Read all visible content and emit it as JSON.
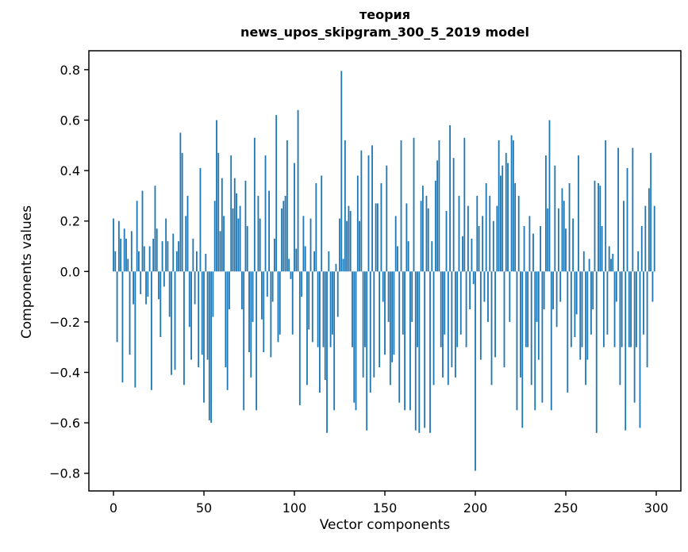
{
  "figure": {
    "title_line1": "теория",
    "title_line2": "news_upos_skipgram_300_5_2019 model"
  },
  "chart_data": {
    "type": "bar",
    "title": "теория",
    "subtitle": "news_upos_skipgram_300_5_2019 model",
    "xlabel": "Vector components",
    "ylabel": "Components values",
    "bar_color": "#1f77b4",
    "axis_color": "#000000",
    "grid": false,
    "legend": null,
    "xlim": [
      -13.6,
      313.6
    ],
    "ylim": [
      -0.87,
      0.875
    ],
    "x_ticks": [
      0,
      50,
      100,
      150,
      200,
      250,
      300
    ],
    "x_tick_labels": [
      "0",
      "50",
      "100",
      "150",
      "200",
      "250",
      "300"
    ],
    "y_ticks": [
      0.8,
      0.6,
      0.4,
      0.2,
      0.0,
      -0.2,
      -0.4,
      -0.6,
      -0.8
    ],
    "y_tick_labels": [
      "0.8",
      "0.6",
      "0.4",
      "0.2",
      "0.0",
      "−0.2",
      "−0.4",
      "−0.6",
      "−0.8"
    ],
    "x": "component index 0..299",
    "values": [
      0.21,
      0.08,
      -0.28,
      0.2,
      0.13,
      -0.44,
      0.17,
      0.13,
      0.05,
      -0.33,
      0.16,
      -0.13,
      -0.46,
      0.28,
      0.08,
      -0.09,
      0.32,
      0.1,
      -0.13,
      -0.1,
      0.1,
      -0.47,
      0.13,
      0.34,
      0.17,
      -0.11,
      -0.26,
      0.12,
      -0.06,
      0.21,
      0.12,
      -0.18,
      -0.41,
      0.15,
      -0.39,
      0.08,
      0.12,
      0.55,
      0.47,
      -0.45,
      0.22,
      0.3,
      -0.22,
      -0.35,
      0.13,
      -0.13,
      0.08,
      -0.38,
      0.41,
      -0.33,
      -0.52,
      0.07,
      -0.35,
      -0.59,
      -0.6,
      -0.18,
      0.28,
      0.6,
      0.47,
      0.16,
      0.37,
      0.22,
      -0.38,
      -0.47,
      -0.15,
      0.46,
      0.25,
      0.37,
      0.31,
      0.21,
      0.26,
      -0.15,
      -0.55,
      0.36,
      0.18,
      -0.32,
      -0.42,
      -0.2,
      0.53,
      -0.55,
      0.3,
      0.21,
      -0.19,
      -0.32,
      0.46,
      -0.1,
      0.32,
      -0.34,
      -0.12,
      0.13,
      0.62,
      -0.28,
      -0.25,
      0.25,
      0.28,
      0.3,
      0.52,
      0.05,
      -0.03,
      -0.25,
      0.43,
      0.09,
      0.64,
      -0.53,
      -0.1,
      0.22,
      0.1,
      -0.45,
      -0.23,
      0.21,
      -0.28,
      0.08,
      0.35,
      -0.3,
      -0.48,
      0.38,
      -0.3,
      -0.43,
      -0.64,
      0.08,
      -0.3,
      -0.25,
      -0.55,
      0.03,
      -0.18,
      0.21,
      0.795,
      0.05,
      0.52,
      0.2,
      0.26,
      0.24,
      -0.3,
      -0.52,
      -0.55,
      0.38,
      0.2,
      0.48,
      -0.42,
      -0.3,
      -0.63,
      0.46,
      -0.48,
      0.5,
      -0.42,
      0.27,
      0.27,
      -0.38,
      0.35,
      -0.12,
      -0.33,
      0.42,
      -0.2,
      -0.45,
      -0.36,
      -0.33,
      0.22,
      0.1,
      -0.52,
      0.52,
      -0.25,
      -0.55,
      0.27,
      0.12,
      -0.55,
      -0.2,
      0.53,
      -0.63,
      -0.3,
      -0.64,
      0.28,
      0.34,
      -0.62,
      0.3,
      0.25,
      -0.64,
      0.12,
      -0.45,
      0.36,
      0.44,
      0.52,
      -0.3,
      -0.42,
      -0.25,
      0.24,
      -0.45,
      0.58,
      -0.38,
      0.45,
      -0.42,
      -0.3,
      0.3,
      -0.25,
      0.14,
      0.53,
      -0.3,
      0.26,
      -0.15,
      0.13,
      -0.05,
      -0.79,
      0.3,
      0.18,
      -0.35,
      0.22,
      -0.12,
      0.35,
      -0.2,
      0.3,
      -0.45,
      0.2,
      -0.34,
      0.26,
      0.52,
      0.38,
      0.42,
      -0.38,
      0.47,
      0.43,
      -0.2,
      0.54,
      0.52,
      0.35,
      -0.55,
      0.3,
      -0.42,
      -0.62,
      0.18,
      -0.3,
      -0.3,
      0.22,
      -0.45,
      0.15,
      -0.55,
      -0.2,
      -0.35,
      0.18,
      -0.52,
      -0.15,
      0.46,
      0.25,
      0.6,
      -0.55,
      -0.15,
      0.42,
      -0.22,
      0.25,
      -0.12,
      0.33,
      0.28,
      0.17,
      -0.48,
      0.35,
      -0.3,
      0.21,
      -0.26,
      -0.17,
      0.46,
      -0.35,
      -0.3,
      0.08,
      -0.45,
      -0.35,
      0.05,
      -0.25,
      -0.15,
      0.36,
      -0.64,
      0.35,
      0.34,
      0.18,
      -0.3,
      0.52,
      -0.25,
      0.1,
      0.05,
      0.07,
      -0.3,
      -0.12,
      0.49,
      -0.45,
      -0.3,
      0.28,
      -0.63,
      0.41,
      -0.3,
      -0.3,
      0.49,
      -0.52,
      -0.3,
      0.08,
      -0.62,
      0.18,
      -0.25,
      0.26,
      -0.38,
      0.33,
      0.47,
      -0.12,
      0.26
    ]
  }
}
